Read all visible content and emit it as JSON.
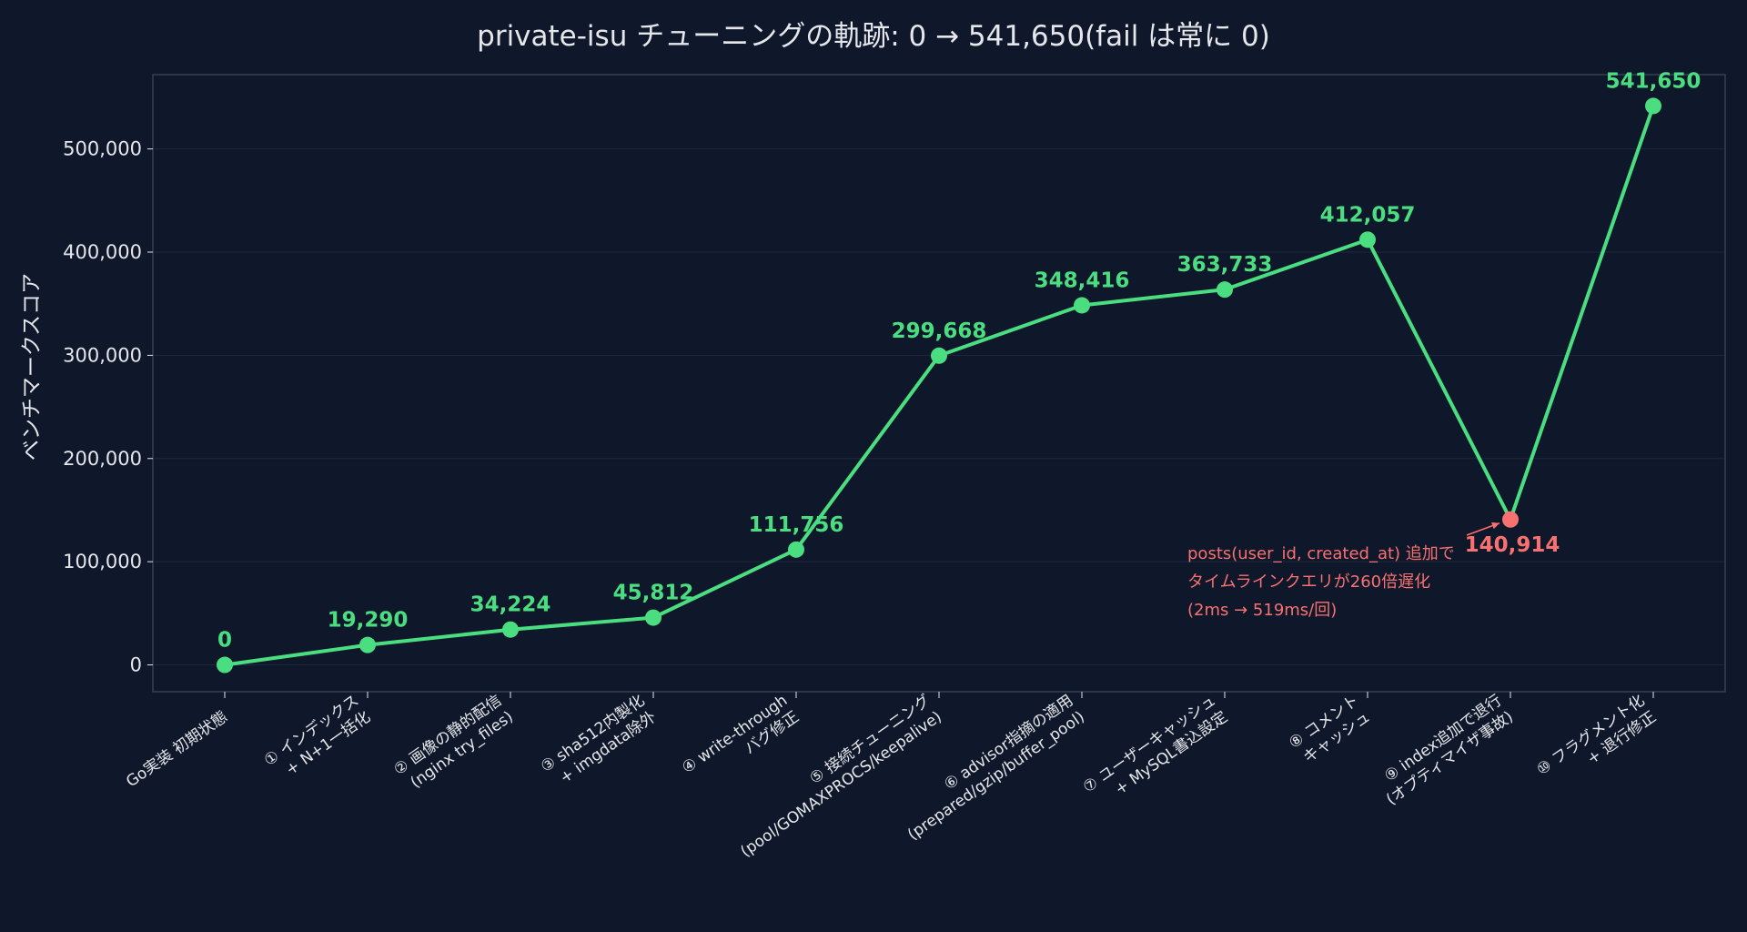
{
  "chart_data": {
    "type": "line",
    "title": "private-isu チューニングの軌跡: 0 → 541,650(fail は常に 0)",
    "ylabel": "ベンチマークスコア",
    "xlabel": "",
    "ylim": [
      -26000,
      572000
    ],
    "yticks": [
      0,
      100000,
      200000,
      300000,
      400000,
      500000
    ],
    "ytick_labels": [
      "0",
      "100,000",
      "200,000",
      "300,000",
      "400,000",
      "500,000"
    ],
    "grid": true,
    "categories": [
      [
        "Go実装 初期状態"
      ],
      [
        "① インデックス",
        "+ N+1一括化"
      ],
      [
        "② 画像の静的配信",
        "(nginx try_files)"
      ],
      [
        "③ sha512内製化",
        "+ imgdata除外"
      ],
      [
        "④ write-through",
        "バグ修正"
      ],
      [
        "⑤ 接続チューニング",
        "(pool/GOMAXPROCS/keepalive)"
      ],
      [
        "⑥ advisor指摘の適用",
        "(prepared/gzip/buffer_pool)"
      ],
      [
        "⑦ ユーザーキャッシュ",
        "+ MySQL書込設定"
      ],
      [
        "⑧ コメント",
        "キャッシュ"
      ],
      [
        "⑨ index追加で退行",
        "(オプティマイザ事故)"
      ],
      [
        "⑩ フラグメント化",
        "+ 退行修正"
      ]
    ],
    "values": [
      0,
      19290,
      34224,
      45812,
      111756,
      299668,
      348416,
      363733,
      412057,
      140914,
      541650
    ],
    "value_labels": [
      "0",
      "19,290",
      "34,224",
      "45,812",
      "111,756",
      "299,668",
      "348,416",
      "363,733",
      "412,057",
      "140,914",
      "541,650"
    ],
    "highlight_index": 9,
    "colors": {
      "series": "#4ade80",
      "regression": "#f87171",
      "background": "#0f172a",
      "text": "#e5e7eb",
      "grid": "#1e293b",
      "frame": "#334155"
    },
    "annotation": {
      "target_index": 9,
      "lines": [
        "posts(user_id, created_at) 追加で",
        "タイムラインクエリが260倍遅化",
        "(2ms → 519ms/回)"
      ]
    }
  }
}
